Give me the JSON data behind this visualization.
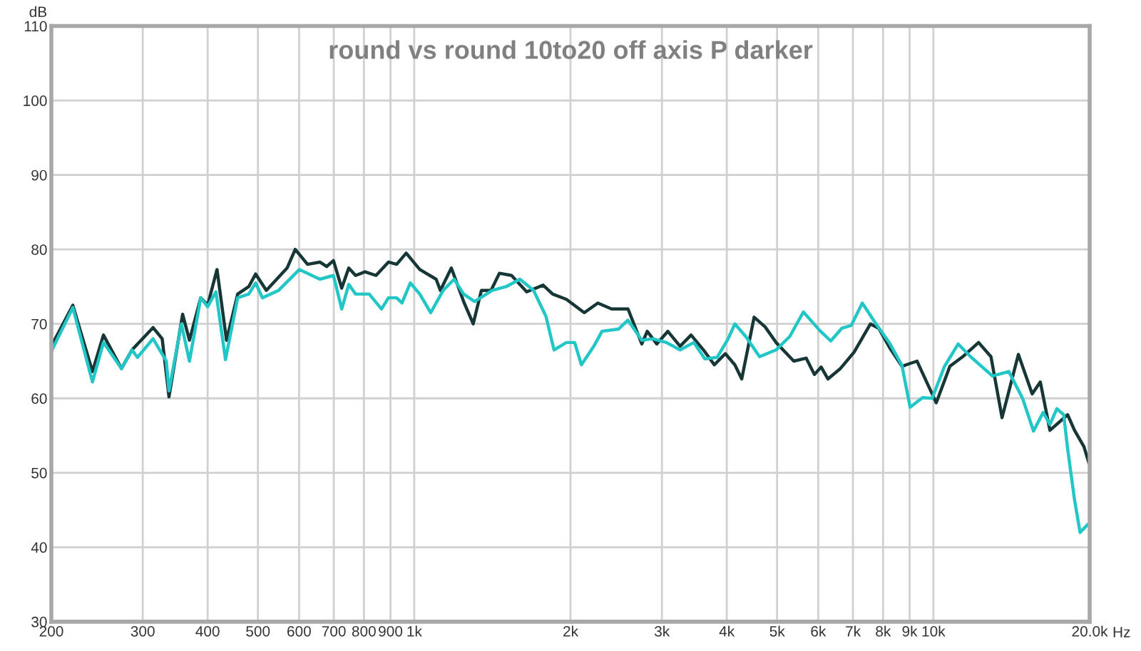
{
  "chart_data": {
    "type": "line",
    "title": "round vs round 10to20 off axis P darker",
    "xlabel": "Hz",
    "ylabel": "dB",
    "log": "x",
    "grid": true,
    "line_style": "solid",
    "xlim": [
      200,
      20000
    ],
    "ylim": [
      30,
      110
    ],
    "xticks": [
      200,
      300,
      400,
      500,
      600,
      700,
      800,
      900,
      {
        "value": 1000,
        "label": "1k"
      },
      {
        "value": 2000,
        "label": "2k"
      },
      {
        "value": 3000,
        "label": "3k"
      },
      {
        "value": 4000,
        "label": "4k"
      },
      {
        "value": 5000,
        "label": "5k"
      },
      {
        "value": 6000,
        "label": "6k"
      },
      {
        "value": 7000,
        "label": "7k"
      },
      {
        "value": 8000,
        "label": "8k"
      },
      {
        "value": 9000,
        "label": "9k"
      },
      {
        "value": 10000,
        "label": "10k"
      },
      {
        "value": 20000,
        "label": "20.0k"
      }
    ],
    "yticks": [
      30,
      40,
      50,
      60,
      70,
      80,
      90,
      100,
      110
    ],
    "series": [
      {
        "color": "#173636",
        "x": [
          200,
          220,
          240,
          252,
          273,
          286,
          314,
          327,
          337,
          358,
          369,
          388,
          400,
          417,
          435,
          457,
          480,
          495,
          519,
          569,
          590,
          623,
          658,
          678,
          699,
          725,
          748,
          771,
          804,
          844,
          892,
          925,
          965,
          1025,
          1102,
          1123,
          1179,
          1245,
          1299,
          1347,
          1406,
          1459,
          1540,
          1647,
          1771,
          1848,
          1964,
          2126,
          2258,
          2400,
          2581,
          2744,
          2811,
          2932,
          3079,
          3252,
          3414,
          3607,
          3785,
          3974,
          4146,
          4274,
          4516,
          4741,
          4977,
          5384,
          5688,
          5900,
          6080,
          6266,
          6620,
          7036,
          7566,
          7848,
          8238,
          8700,
          9300,
          9824,
          10128,
          10760,
          11440,
          12220,
          12910,
          13560,
          14580,
          15500,
          16070,
          16770,
          18140,
          18700,
          19500,
          20000
        ],
        "values": [
          67,
          72.5,
          63.6,
          68.5,
          64,
          66.5,
          69.5,
          68,
          60.2,
          71.3,
          67.8,
          73.5,
          72.5,
          77.3,
          67.8,
          74,
          75,
          76.7,
          74.5,
          77.5,
          80,
          78,
          78.3,
          77.7,
          78.5,
          74.8,
          77.5,
          76.5,
          77,
          76.5,
          78.3,
          78,
          79.5,
          77.3,
          76,
          74.5,
          77.5,
          73,
          70,
          74.5,
          74.5,
          76.8,
          76.5,
          74.3,
          75.2,
          74,
          73.3,
          71.5,
          72.8,
          72,
          72,
          67.3,
          69,
          67.3,
          69,
          67,
          68.5,
          66.5,
          64.5,
          66,
          64.5,
          62.6,
          70.9,
          69.6,
          67.5,
          65,
          65.4,
          63.2,
          64.2,
          62.6,
          64,
          66.2,
          70,
          69.4,
          66.8,
          64.3,
          65,
          61.4,
          59.4,
          64.3,
          65.7,
          67.5,
          65.6,
          57.4,
          65.9,
          60.6,
          62.2,
          55.7,
          57.8,
          55.7,
          53.5,
          51
        ]
      },
      {
        "color": "#22c6c6",
        "x": [
          200,
          220,
          240,
          252,
          273,
          286,
          293,
          314,
          333,
          337,
          356,
          369,
          388,
          400,
          415,
          433,
          457,
          480,
          495,
          510,
          548,
          601,
          658,
          699,
          725,
          748,
          771,
          819,
          865,
          892,
          925,
          947,
          983,
          1025,
          1076,
          1137,
          1194,
          1245,
          1307,
          1414,
          1503,
          1598,
          1698,
          1794,
          1859,
          1964,
          2037,
          2099,
          2218,
          2300,
          2474,
          2581,
          2744,
          2880,
          3060,
          3252,
          3456,
          3629,
          3832,
          4024,
          4146,
          4352,
          4626,
          4977,
          5288,
          5618,
          6044,
          6344,
          6660,
          6948,
          7296,
          7752,
          8238,
          8700,
          9020,
          9532,
          9946,
          10506,
          11164,
          11792,
          12994,
          13976,
          14852,
          15592,
          16270,
          16770,
          17292,
          17826,
          18140,
          18700,
          19166,
          19800
        ],
        "values": [
          66.3,
          72.2,
          62.2,
          67.5,
          64,
          66.5,
          65.5,
          68,
          65,
          61,
          70,
          65,
          73.5,
          72.3,
          74.3,
          65.2,
          73.5,
          74,
          75.5,
          73.5,
          74.5,
          77.3,
          76,
          76.5,
          72,
          75.3,
          74,
          74,
          72,
          73.5,
          73.5,
          72.8,
          75.5,
          74,
          71.5,
          74.5,
          76,
          74,
          73,
          74.5,
          75,
          76,
          74.5,
          71,
          66.5,
          67.5,
          67.5,
          64.5,
          67,
          69,
          69.3,
          70.5,
          67.8,
          68,
          67.5,
          66.5,
          67.5,
          65.3,
          65.5,
          68,
          70,
          68.3,
          65.6,
          66.5,
          68.3,
          71.6,
          69.1,
          67.7,
          69.4,
          69.8,
          72.8,
          70,
          67.4,
          64.4,
          58.8,
          60.1,
          60,
          64.3,
          67.3,
          65.6,
          63,
          63.6,
          60,
          55.6,
          58.1,
          56.5,
          58.6,
          57.8,
          53.2,
          46.4,
          42,
          43
        ]
      }
    ]
  }
}
